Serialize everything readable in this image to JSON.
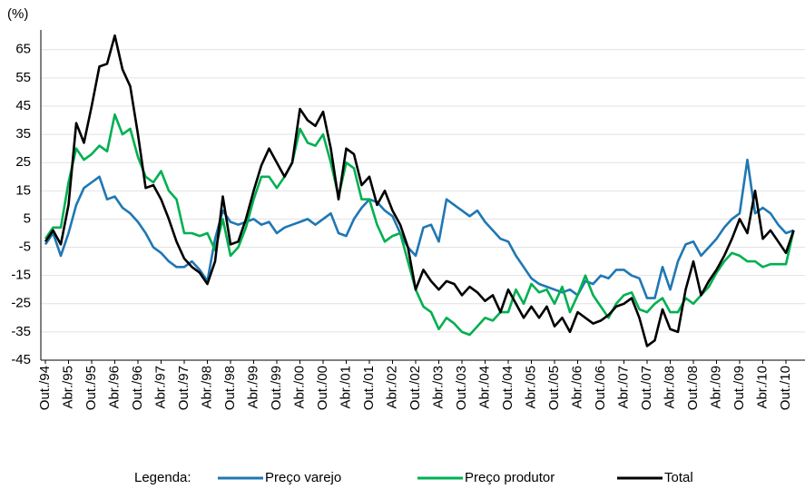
{
  "chart_data": {
    "type": "line",
    "y_label": "(%)",
    "legend_title": "Legenda:",
    "categories": [
      "Out./94",
      null,
      null,
      "Abr./95",
      null,
      null,
      "Out./95",
      null,
      null,
      "Abr./96",
      null,
      null,
      "Out./96",
      null,
      null,
      "Abr./97",
      null,
      null,
      "Out./97",
      null,
      null,
      "Abr./98",
      null,
      null,
      "Out./98",
      null,
      null,
      "Abr./99",
      null,
      null,
      "Out./99",
      null,
      null,
      "Abr./00",
      null,
      null,
      "Out./00",
      null,
      null,
      "Abr./01",
      null,
      null,
      "Out./01",
      null,
      null,
      "Abr./02",
      null,
      null,
      "Out./02",
      null,
      null,
      "Abr./03",
      null,
      null,
      "Out./03",
      null,
      null,
      "Abr./04",
      null,
      null,
      "Out./04",
      null,
      null,
      "Abr./05",
      null,
      null,
      "Out./05",
      null,
      null,
      "Abr./06",
      null,
      null,
      "Out./06",
      null,
      null,
      "Abr./07",
      null,
      null,
      "Out./07",
      null,
      null,
      "Abr./08",
      null,
      null,
      "Out./08",
      null,
      null,
      "Abr./09",
      null,
      null,
      "Out./09",
      null,
      null,
      "Abr./10",
      null,
      null,
      "Out./10",
      null
    ],
    "series": [
      {
        "name": "Preço varejo",
        "color": "#1f77b4",
        "values": [
          -4,
          0,
          -8,
          0,
          10,
          16,
          18,
          20,
          12,
          13,
          9,
          7,
          4,
          0,
          -5,
          -7,
          -10,
          -12,
          -12,
          -10,
          -13,
          -17,
          -2,
          8,
          4,
          3,
          4,
          5,
          3,
          4,
          0,
          2,
          3,
          4,
          5,
          3,
          5,
          7,
          0,
          -1,
          5,
          9,
          12,
          11,
          8,
          6,
          0,
          -5,
          -8,
          2,
          3,
          -3,
          12,
          10,
          8,
          6,
          8,
          4,
          1,
          -2,
          -3,
          -8,
          -12,
          -16,
          -18,
          -19,
          -20,
          -21,
          -20,
          -22,
          -17,
          -18,
          -15,
          -16,
          -13,
          -13,
          -15,
          -16,
          -23,
          -23,
          -12,
          -20,
          -10,
          -4,
          -3,
          -8,
          -5,
          -2,
          2,
          5,
          7,
          26,
          7,
          9,
          7,
          3,
          0,
          1
        ]
      },
      {
        "name": "Preço produtor",
        "color": "#00b050",
        "values": [
          -2,
          2,
          2,
          18,
          30,
          26,
          28,
          31,
          29,
          42,
          35,
          37,
          27,
          20,
          18,
          22,
          15,
          12,
          0,
          0,
          -1,
          0,
          -6,
          5,
          -8,
          -5,
          2,
          12,
          20,
          20,
          16,
          20,
          25,
          37,
          32,
          31,
          35,
          25,
          13,
          25,
          23,
          12,
          12,
          3,
          -3,
          -1,
          0,
          -10,
          -20,
          -26,
          -28,
          -34,
          -30,
          -32,
          -35,
          -36,
          -33,
          -30,
          -31,
          -28,
          -28,
          -20,
          -25,
          -18,
          -21,
          -20,
          -25,
          -19,
          -28,
          -22,
          -15,
          -22,
          -26,
          -30,
          -25,
          -22,
          -21,
          -27,
          -28,
          -25,
          -23,
          -28,
          -28,
          -23,
          -25,
          -22,
          -19,
          -14,
          -10,
          -7,
          -8,
          -10,
          -10,
          -12,
          -11,
          -11,
          -11,
          1
        ]
      },
      {
        "name": "Total",
        "color": "#000000",
        "values": [
          -3,
          1,
          -4,
          10,
          39,
          32,
          45,
          59,
          60,
          70,
          58,
          52,
          35,
          16,
          17,
          12,
          5,
          -3,
          -9,
          -12,
          -14,
          -18,
          -10,
          13,
          -4,
          -3,
          5,
          15,
          24,
          30,
          25,
          20,
          25,
          44,
          40,
          38,
          43,
          30,
          12,
          30,
          28,
          17,
          20,
          10,
          15,
          8,
          3,
          -5,
          -20,
          -13,
          -17,
          -20,
          -17,
          -18,
          -22,
          -19,
          -21,
          -24,
          -22,
          -28,
          -20,
          -25,
          -30,
          -26,
          -30,
          -26,
          -33,
          -30,
          -35,
          -28,
          -30,
          -32,
          -31,
          -29,
          -26,
          -25,
          -23,
          -30,
          -40,
          -38,
          -27,
          -34,
          -35,
          -20,
          -10,
          -22,
          -17,
          -13,
          -8,
          -2,
          5,
          0,
          15,
          -2,
          1,
          -3,
          -7,
          1
        ]
      }
    ],
    "ylim": [
      -45,
      72
    ],
    "yticks": [
      -45,
      -35,
      -25,
      -15,
      -5,
      5,
      15,
      25,
      35,
      45,
      55,
      65
    ],
    "grid": true
  }
}
